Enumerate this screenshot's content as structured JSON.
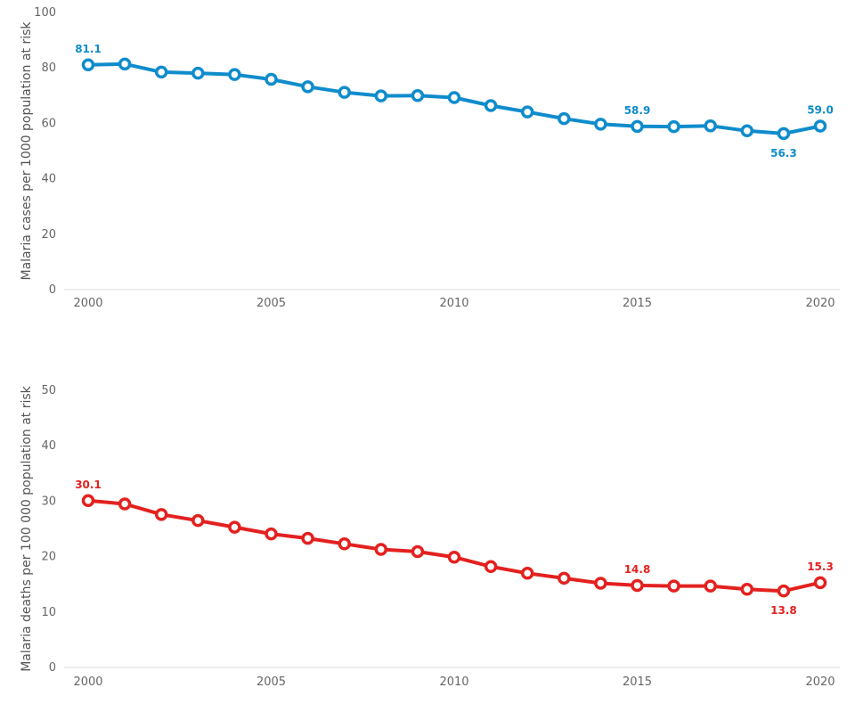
{
  "chart_data": [
    {
      "type": "line",
      "ylabel": "Malaria cases per 1000 population at risk",
      "color": "#0f8ccc",
      "ylim": [
        0,
        100
      ],
      "y_ticks": [
        0,
        20,
        40,
        60,
        80,
        100
      ],
      "x_ticks": [
        2000,
        2005,
        2010,
        2015,
        2020
      ],
      "x_ticks_text": [
        "2000",
        "2005",
        "2010",
        "2015",
        "2020"
      ],
      "x": [
        2000,
        2001,
        2002,
        2003,
        2004,
        2005,
        2006,
        2007,
        2008,
        2009,
        2010,
        2011,
        2012,
        2013,
        2014,
        2015,
        2016,
        2017,
        2018,
        2019,
        2020
      ],
      "values": [
        81.1,
        81.4,
        78.5,
        78.1,
        77.6,
        75.9,
        73.2,
        71.2,
        69.9,
        70.0,
        69.3,
        66.4,
        64.1,
        61.7,
        59.7,
        58.9,
        58.8,
        59.1,
        57.3,
        56.3,
        59.0
      ],
      "labels": [
        {
          "year": 2000,
          "text": "81.1",
          "where": "above"
        },
        {
          "year": 2015,
          "text": "58.9",
          "where": "above"
        },
        {
          "year": 2019,
          "text": "56.3",
          "where": "below"
        },
        {
          "year": 2020,
          "text": "59.0",
          "where": "above"
        }
      ]
    },
    {
      "type": "line",
      "ylabel": "Malaria deaths per 100 000 population at risk",
      "color": "#e3211f",
      "ylim": [
        0,
        50
      ],
      "y_ticks": [
        0,
        10,
        20,
        30,
        40,
        50
      ],
      "x_ticks": [
        2000,
        2005,
        2010,
        2015,
        2020
      ],
      "x_ticks_text": [
        "2000",
        "2005",
        "2010",
        "2015",
        "2020"
      ],
      "x": [
        2000,
        2001,
        2002,
        2003,
        2004,
        2005,
        2006,
        2007,
        2008,
        2009,
        2010,
        2011,
        2012,
        2013,
        2014,
        2015,
        2016,
        2017,
        2018,
        2019,
        2020
      ],
      "values": [
        30.1,
        29.5,
        27.6,
        26.5,
        25.3,
        24.1,
        23.3,
        22.3,
        21.3,
        20.9,
        19.9,
        18.2,
        17.0,
        16.1,
        15.2,
        14.8,
        14.7,
        14.7,
        14.1,
        13.8,
        15.3
      ],
      "labels": [
        {
          "year": 2000,
          "text": "30.1",
          "where": "above"
        },
        {
          "year": 2015,
          "text": "14.8",
          "where": "above"
        },
        {
          "year": 2019,
          "text": "13.8",
          "where": "below"
        },
        {
          "year": 2020,
          "text": "15.3",
          "where": "above"
        }
      ]
    }
  ]
}
